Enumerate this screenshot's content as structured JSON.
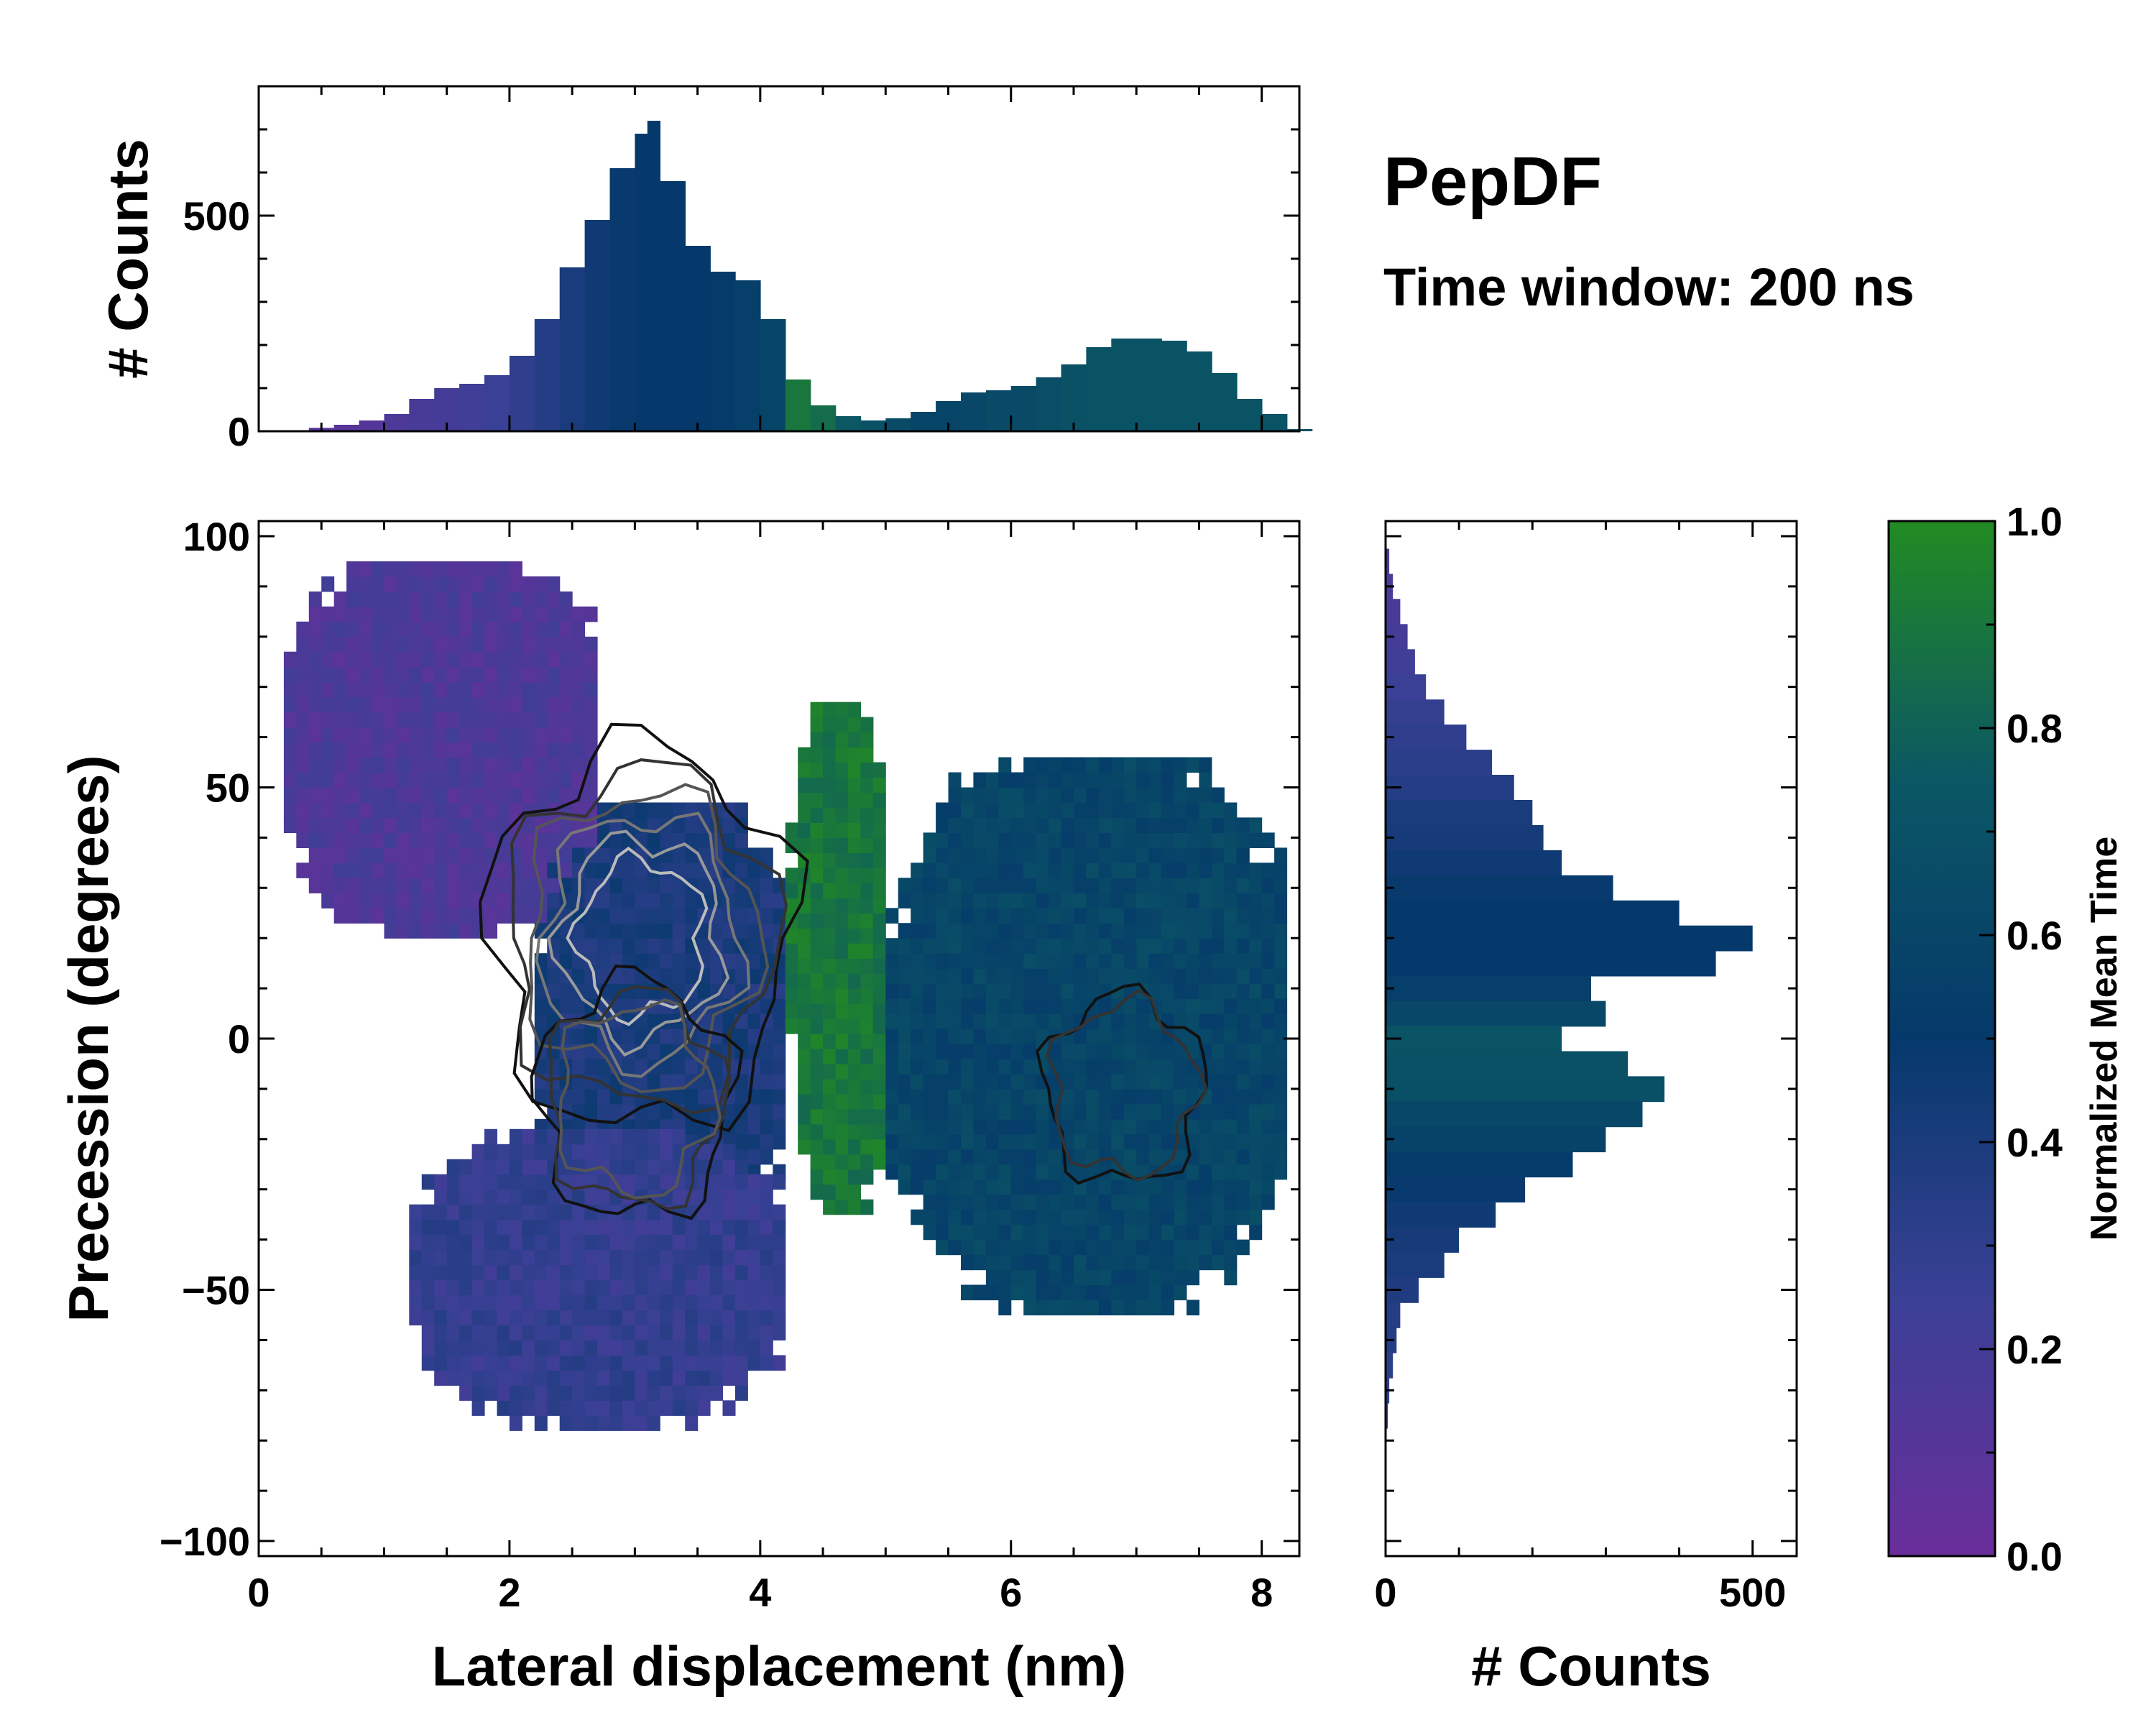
{
  "chart_data": {
    "type": "heatmap",
    "title": "PepDF",
    "subtitle": "Time window: 200 ns",
    "main_plot": {
      "xlabel": "Lateral displacement (nm)",
      "ylabel": "Precession (degrees)",
      "xlim": [
        0,
        8.3
      ],
      "ylim": [
        -103,
        103
      ],
      "x_ticks": [
        0,
        2,
        4,
        6,
        8
      ],
      "x_tick_labels": [
        "0",
        "2",
        "4",
        "6",
        "8"
      ],
      "y_ticks": [
        100,
        50,
        0,
        -50,
        -100
      ],
      "y_tick_labels": [
        "100",
        "50",
        "0",
        "−50",
        "−100"
      ],
      "color_value": "Normalized Mean Time",
      "regions": [
        {
          "name": "upper-left lobe",
          "x_range": [
            0.2,
            2.7
          ],
          "y_range": [
            20,
            95
          ],
          "mean_time": 0.15
        },
        {
          "name": "central basin",
          "x_range": [
            2.2,
            4.2
          ],
          "y_range": [
            -40,
            45
          ],
          "mean_time": 0.4
        },
        {
          "name": "lower-left lobe",
          "x_range": [
            1.2,
            4.2
          ],
          "y_range": [
            -78,
            -20
          ],
          "mean_time": 0.28
        },
        {
          "name": "green band",
          "x_range": [
            4.2,
            5.0
          ],
          "y_range": [
            -35,
            65
          ],
          "mean_time": 0.9
        },
        {
          "name": "right basin",
          "x_range": [
            5.0,
            8.2
          ],
          "y_range": [
            -55,
            55
          ],
          "mean_time": 0.6
        }
      ],
      "density_peaks": [
        {
          "x": 3.05,
          "y": 20,
          "relative_density": 1.0
        },
        {
          "x": 3.0,
          "y": -12,
          "relative_density": 0.55
        },
        {
          "x": 6.9,
          "y": -10,
          "relative_density": 0.4
        }
      ]
    },
    "top_histogram": {
      "type": "bar",
      "ylabel": "# Counts",
      "xlim": [
        0,
        8.3
      ],
      "ylim": [
        0,
        800
      ],
      "y_ticks": [
        0,
        500
      ],
      "y_tick_labels": [
        "0",
        "500"
      ],
      "x": [
        0.2,
        0.4,
        0.6,
        0.8,
        1.0,
        1.2,
        1.4,
        1.6,
        1.8,
        2.0,
        2.2,
        2.4,
        2.6,
        2.8,
        3.0,
        3.1,
        3.2,
        3.4,
        3.6,
        3.8,
        4.0,
        4.2,
        4.4,
        4.6,
        4.8,
        5.0,
        5.2,
        5.4,
        5.6,
        5.8,
        6.0,
        6.2,
        6.4,
        6.6,
        6.8,
        7.0,
        7.2,
        7.4,
        7.6,
        7.8,
        8.0,
        8.2
      ],
      "values": [
        2,
        8,
        15,
        25,
        40,
        75,
        100,
        110,
        130,
        175,
        260,
        380,
        490,
        610,
        690,
        720,
        580,
        430,
        370,
        350,
        260,
        120,
        60,
        35,
        25,
        30,
        45,
        70,
        90,
        95,
        105,
        125,
        155,
        195,
        215,
        215,
        210,
        185,
        135,
        75,
        40,
        5
      ],
      "color_values": [
        0.05,
        0.08,
        0.1,
        0.12,
        0.15,
        0.18,
        0.2,
        0.22,
        0.25,
        0.3,
        0.35,
        0.4,
        0.45,
        0.48,
        0.5,
        0.5,
        0.5,
        0.5,
        0.52,
        0.55,
        0.6,
        0.9,
        0.85,
        0.75,
        0.7,
        0.65,
        0.6,
        0.6,
        0.62,
        0.65,
        0.65,
        0.67,
        0.7,
        0.72,
        0.72,
        0.72,
        0.72,
        0.72,
        0.72,
        0.72,
        0.72,
        0.72
      ]
    },
    "right_histogram": {
      "type": "bar",
      "orientation": "horizontal",
      "xlabel": "# Counts",
      "xlim": [
        0,
        560
      ],
      "x_ticks": [
        0,
        500
      ],
      "x_tick_labels": [
        "0",
        "500"
      ],
      "y": [
        95,
        90,
        85,
        80,
        75,
        70,
        65,
        60,
        55,
        50,
        45,
        40,
        35,
        30,
        25,
        20,
        15,
        10,
        5,
        0,
        -5,
        -10,
        -15,
        -20,
        -25,
        -30,
        -35,
        -40,
        -45,
        -50,
        -55,
        -60,
        -65,
        -70,
        -75
      ],
      "values": [
        5,
        10,
        20,
        30,
        40,
        55,
        80,
        110,
        145,
        175,
        200,
        215,
        240,
        310,
        400,
        500,
        450,
        280,
        300,
        240,
        330,
        380,
        350,
        300,
        255,
        190,
        150,
        100,
        80,
        45,
        20,
        15,
        10,
        5,
        3
      ],
      "color_values": [
        0.15,
        0.15,
        0.18,
        0.2,
        0.22,
        0.25,
        0.28,
        0.3,
        0.32,
        0.35,
        0.4,
        0.42,
        0.45,
        0.48,
        0.5,
        0.5,
        0.5,
        0.55,
        0.62,
        0.72,
        0.7,
        0.68,
        0.62,
        0.58,
        0.52,
        0.48,
        0.45,
        0.42,
        0.4,
        0.38,
        0.35,
        0.35,
        0.32,
        0.3,
        0.3
      ]
    },
    "colorbar": {
      "label": "Normalized Mean Time",
      "range": [
        0.0,
        1.0
      ],
      "ticks": [
        0.0,
        0.2,
        0.4,
        0.6,
        0.8,
        1.0
      ],
      "tick_labels": [
        "0.0",
        "0.2",
        "0.4",
        "0.6",
        "0.8",
        "1.0"
      ],
      "colors": [
        "#6a2e9b",
        "#3a4095",
        "#05396b",
        "#0b5764",
        "#228b22"
      ]
    }
  }
}
